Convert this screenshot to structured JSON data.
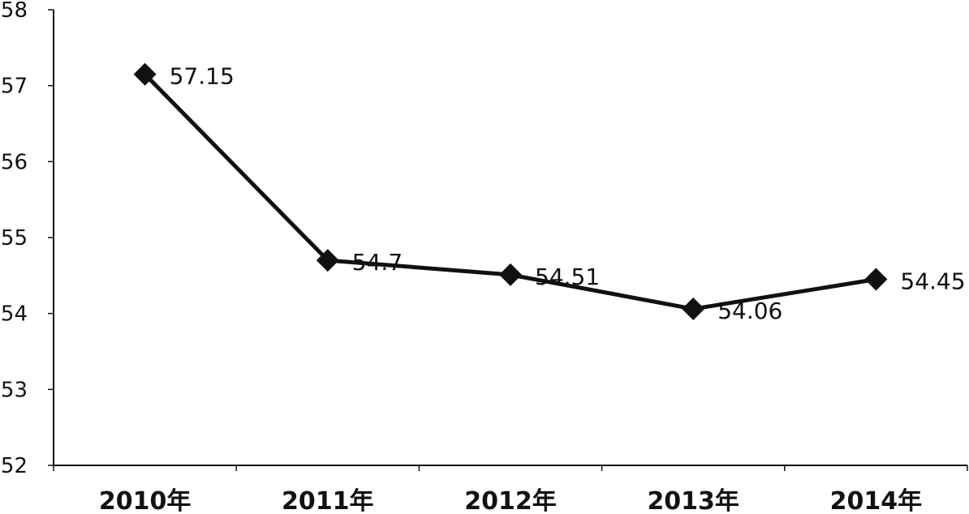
{
  "chart_data": {
    "type": "line",
    "categories": [
      "2010年",
      "2011年",
      "2012年",
      "2013年",
      "2014年"
    ],
    "series": [
      {
        "values": [
          57.15,
          54.7,
          54.51,
          54.06,
          54.45
        ],
        "labels": [
          "57.15",
          "54.7",
          "54.51",
          "54.06",
          "54.45"
        ]
      }
    ],
    "yticks": [
      "52",
      "53",
      "54",
      "55",
      "56",
      "57",
      "58"
    ],
    "ylim": [
      52,
      58
    ],
    "title": "",
    "xlabel": "",
    "ylabel": "",
    "grid": false,
    "legend": "none",
    "marker": "diamond",
    "color": "#111111"
  }
}
